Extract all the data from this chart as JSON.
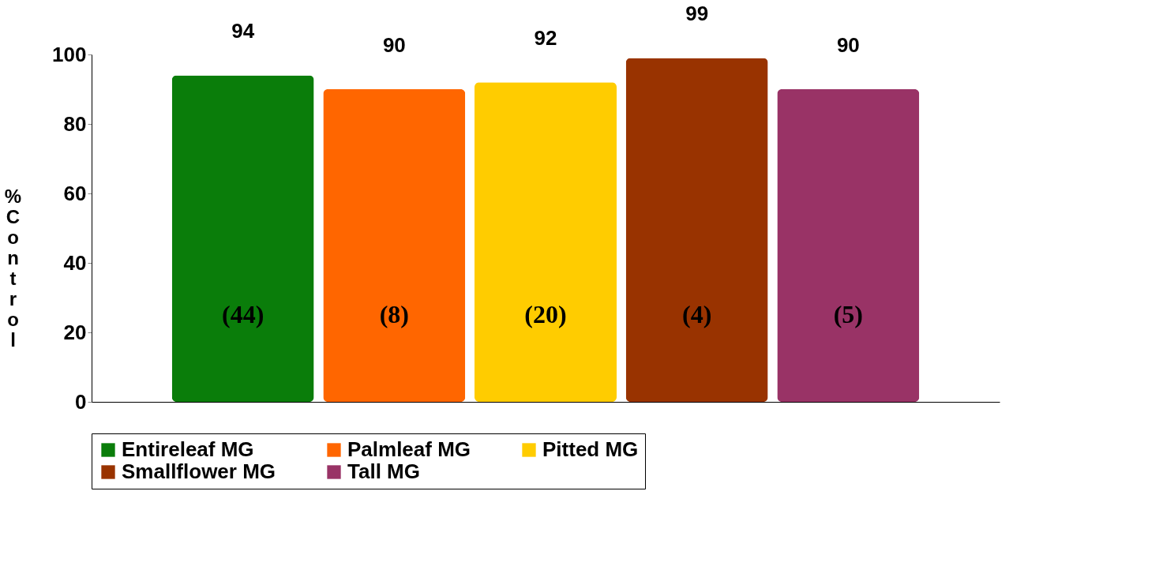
{
  "chart_data": {
    "type": "bar",
    "ylabel": "% Control",
    "categories": [
      null,
      null,
      null,
      null,
      null
    ],
    "series": [
      {
        "name": "Entireleaf MG",
        "color": "#0a7d0a",
        "values": [
          94,
          null,
          null,
          null,
          null
        ]
      },
      {
        "name": "Palmleaf MG",
        "color": "#ff6600",
        "values": [
          null,
          90,
          null,
          null,
          null
        ]
      },
      {
        "name": "Pitted MG",
        "color": "#ffcc00",
        "values": [
          null,
          null,
          92,
          null,
          null
        ]
      },
      {
        "name": "Smallflower MG",
        "color": "#993300",
        "values": [
          null,
          null,
          null,
          99,
          null
        ]
      },
      {
        "name": "Tall MG",
        "color": "#993366",
        "values": [
          null,
          null,
          null,
          null,
          90
        ]
      }
    ],
    "ylim": [
      0,
      100
    ],
    "yticks": [
      0,
      20,
      40,
      60,
      80,
      100
    ],
    "data_labels": true,
    "grid": false,
    "legend": "bottom",
    "tick_labels": "y",
    "annotations": [
      "(44)",
      "(8)",
      "(20)",
      "(4)",
      "(5)"
    ]
  }
}
